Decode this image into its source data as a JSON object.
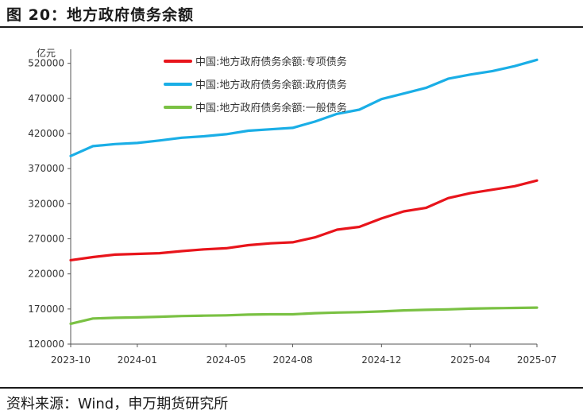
{
  "figure_title": "图 20：地方政府债务余额",
  "source": "资料来源：Wind，申万期货研究所",
  "chart_data": {
    "type": "line",
    "title": "",
    "ylabel": "亿元",
    "xlabel": "",
    "ylim": [
      120000,
      540000
    ],
    "yticks": [
      120000,
      170000,
      220000,
      270000,
      320000,
      370000,
      420000,
      470000,
      520000
    ],
    "xticks": [
      "2023-10",
      "2024-01",
      "2024-05",
      "2024-08",
      "2024-12",
      "2025-04",
      "2025-07"
    ],
    "x": [
      "2023-10",
      "2023-11",
      "2023-12",
      "2024-01",
      "2024-02",
      "2024-03",
      "2024-04",
      "2024-05",
      "2024-06",
      "2024-07",
      "2024-08",
      "2024-09",
      "2024-10",
      "2024-11",
      "2024-12",
      "2025-01",
      "2025-02",
      "2025-03",
      "2025-04",
      "2025-05",
      "2025-06",
      "2025-07"
    ],
    "legend_position": "top",
    "grid": false,
    "series": [
      {
        "name": "中国:地方政府债务余额:专项债务",
        "color": "#e8141b",
        "values": [
          239500,
          244000,
          247500,
          248500,
          249500,
          252500,
          255000,
          256500,
          261000,
          263500,
          265000,
          272000,
          283000,
          287000,
          299000,
          309000,
          314000,
          328000,
          335000,
          340000,
          345000,
          353000
        ]
      },
      {
        "name": "中国:地方政府债务余额:政府债务",
        "color": "#1aaee6",
        "values": [
          388000,
          402000,
          405000,
          406500,
          410000,
          414000,
          416000,
          419000,
          424000,
          426000,
          428000,
          437000,
          448000,
          454000,
          469000,
          477000,
          485000,
          498000,
          504000,
          509000,
          516000,
          525000
        ]
      },
      {
        "name": "中国:地方政府债务余额:一般债务",
        "color": "#7ac143",
        "values": [
          149000,
          156500,
          157500,
          158000,
          159000,
          160000,
          160500,
          161000,
          162000,
          162500,
          162500,
          164000,
          165000,
          165500,
          166500,
          168000,
          168800,
          169500,
          170500,
          171000,
          171500,
          172000
        ]
      }
    ]
  }
}
